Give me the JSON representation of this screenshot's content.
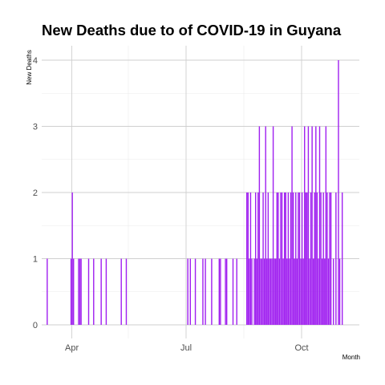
{
  "chart_data": {
    "type": "bar",
    "title": "New Deaths due to of COVID-19 in Guyana",
    "xlabel": "Month",
    "ylabel": "New  Deaths",
    "ylim": [
      0,
      4.2
    ],
    "xlim": [
      "2020-03-08",
      "2020-11-16"
    ],
    "y_ticks": [
      0,
      1,
      2,
      3,
      4
    ],
    "x_ticks": [
      {
        "date": "2020-04-01",
        "label": "Apr"
      },
      {
        "date": "2020-07-01",
        "label": "Jul"
      },
      {
        "date": "2020-10-01",
        "label": "Oct"
      }
    ],
    "x_minor_ticks": [
      "2020-05-16",
      "2020-08-16"
    ],
    "grid": true,
    "bar_color": "#a020f0",
    "points": [
      [
        "2020-03-12",
        1
      ],
      [
        "2020-03-31",
        1
      ],
      [
        "2020-04-01",
        2
      ],
      [
        "2020-04-02",
        1
      ],
      [
        "2020-04-06",
        1
      ],
      [
        "2020-04-07",
        1
      ],
      [
        "2020-04-08",
        1
      ],
      [
        "2020-04-14",
        1
      ],
      [
        "2020-04-18",
        1
      ],
      [
        "2020-04-24",
        1
      ],
      [
        "2020-04-28",
        1
      ],
      [
        "2020-05-10",
        1
      ],
      [
        "2020-05-14",
        1
      ],
      [
        "2020-07-02",
        1
      ],
      [
        "2020-07-04",
        1
      ],
      [
        "2020-07-08",
        1
      ],
      [
        "2020-07-14",
        1
      ],
      [
        "2020-07-16",
        1
      ],
      [
        "2020-07-21",
        1
      ],
      [
        "2020-07-27",
        1
      ],
      [
        "2020-07-28",
        1
      ],
      [
        "2020-08-01",
        1
      ],
      [
        "2020-08-02",
        1
      ],
      [
        "2020-08-07",
        1
      ],
      [
        "2020-08-10",
        1
      ],
      [
        "2020-08-18",
        2
      ],
      [
        "2020-08-19",
        2
      ],
      [
        "2020-08-20",
        1
      ],
      [
        "2020-08-21",
        2
      ],
      [
        "2020-08-22",
        1
      ],
      [
        "2020-08-24",
        1
      ],
      [
        "2020-08-25",
        2
      ],
      [
        "2020-08-26",
        1
      ],
      [
        "2020-08-27",
        2
      ],
      [
        "2020-08-28",
        3
      ],
      [
        "2020-08-29",
        1
      ],
      [
        "2020-08-30",
        1
      ],
      [
        "2020-08-31",
        2
      ],
      [
        "2020-09-01",
        1
      ],
      [
        "2020-09-02",
        3
      ],
      [
        "2020-09-03",
        1
      ],
      [
        "2020-09-04",
        2
      ],
      [
        "2020-09-05",
        1
      ],
      [
        "2020-09-06",
        1
      ],
      [
        "2020-09-07",
        1
      ],
      [
        "2020-09-08",
        3
      ],
      [
        "2020-09-09",
        1
      ],
      [
        "2020-09-10",
        1
      ],
      [
        "2020-09-11",
        2
      ],
      [
        "2020-09-12",
        2
      ],
      [
        "2020-09-13",
        1
      ],
      [
        "2020-09-14",
        2
      ],
      [
        "2020-09-15",
        2
      ],
      [
        "2020-09-16",
        1
      ],
      [
        "2020-09-17",
        2
      ],
      [
        "2020-09-18",
        2
      ],
      [
        "2020-09-19",
        1
      ],
      [
        "2020-09-20",
        2
      ],
      [
        "2020-09-21",
        1
      ],
      [
        "2020-09-22",
        2
      ],
      [
        "2020-09-23",
        3
      ],
      [
        "2020-09-24",
        2
      ],
      [
        "2020-09-25",
        1
      ],
      [
        "2020-09-26",
        2
      ],
      [
        "2020-09-27",
        1
      ],
      [
        "2020-09-28",
        2
      ],
      [
        "2020-09-29",
        2
      ],
      [
        "2020-09-30",
        1
      ],
      [
        "2020-10-01",
        2
      ],
      [
        "2020-10-02",
        1
      ],
      [
        "2020-10-03",
        3
      ],
      [
        "2020-10-04",
        2
      ],
      [
        "2020-10-05",
        2
      ],
      [
        "2020-10-06",
        3
      ],
      [
        "2020-10-07",
        1
      ],
      [
        "2020-10-08",
        2
      ],
      [
        "2020-10-09",
        3
      ],
      [
        "2020-10-10",
        1
      ],
      [
        "2020-10-11",
        2
      ],
      [
        "2020-10-12",
        3
      ],
      [
        "2020-10-13",
        2
      ],
      [
        "2020-10-14",
        1
      ],
      [
        "2020-10-15",
        3
      ],
      [
        "2020-10-16",
        2
      ],
      [
        "2020-10-17",
        1
      ],
      [
        "2020-10-18",
        2
      ],
      [
        "2020-10-19",
        1
      ],
      [
        "2020-10-20",
        3
      ],
      [
        "2020-10-21",
        2
      ],
      [
        "2020-10-22",
        1
      ],
      [
        "2020-10-23",
        2
      ],
      [
        "2020-10-24",
        2
      ],
      [
        "2020-10-26",
        1
      ],
      [
        "2020-10-28",
        2
      ],
      [
        "2020-10-30",
        4
      ],
      [
        "2020-10-31",
        1
      ],
      [
        "2020-11-02",
        2
      ]
    ]
  }
}
